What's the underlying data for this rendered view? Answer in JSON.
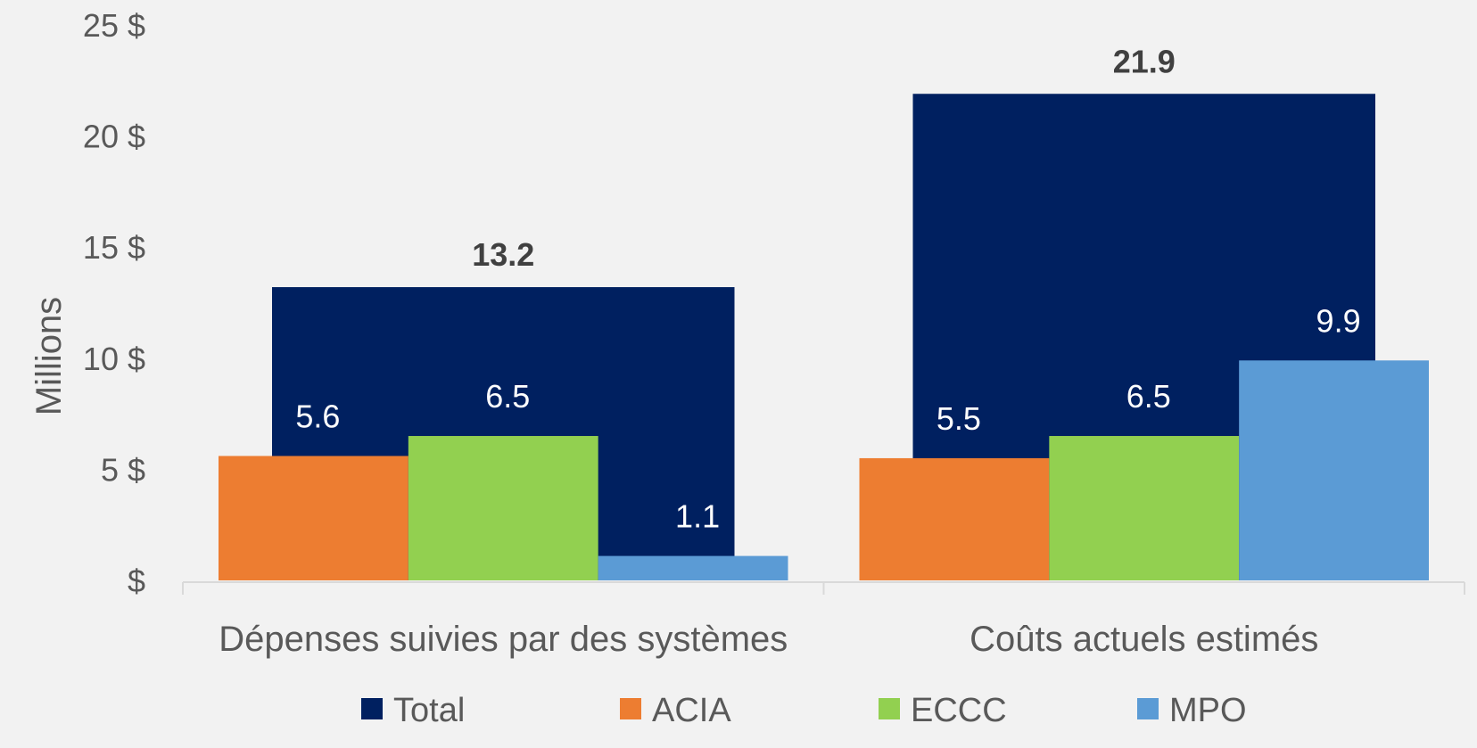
{
  "chart_data": {
    "type": "bar",
    "title": "",
    "xlabel": "",
    "ylabel": "Millions",
    "ylim": [
      0,
      25
    ],
    "yticks": [
      0,
      5,
      10,
      15,
      20,
      25
    ],
    "ytick_labels": [
      "$",
      "5 $",
      "10 $",
      "15 $",
      "20 $",
      "25 $"
    ],
    "categories": [
      "Dépenses suivies par des systèmes",
      "Coûts actuels estimés"
    ],
    "total": {
      "name": "Total",
      "color": "#002060",
      "values": [
        13.2,
        21.9
      ],
      "labels": [
        "13.2",
        "21.9"
      ]
    },
    "series": [
      {
        "name": "ACIA",
        "color": "#ed7d31",
        "values": [
          5.6,
          5.5
        ],
        "labels": [
          "5.6",
          "5.5"
        ]
      },
      {
        "name": "ECCC",
        "color": "#92d050",
        "values": [
          6.5,
          6.5
        ],
        "labels": [
          "6.5",
          "6.5"
        ]
      },
      {
        "name": "MPO",
        "color": "#5b9bd5",
        "values": [
          1.1,
          9.9
        ],
        "labels": [
          "1.1",
          "9.9"
        ]
      }
    ],
    "grid": false,
    "legend": "bottom-center",
    "legend_entries": [
      "Total",
      "ACIA",
      "ECCC",
      "MPO"
    ]
  }
}
